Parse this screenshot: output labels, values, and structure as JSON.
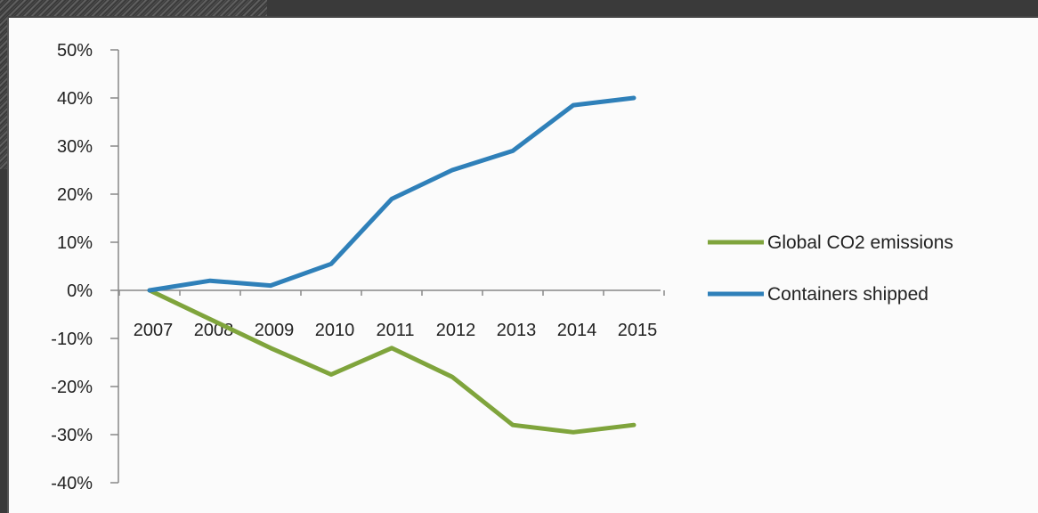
{
  "chart_data": {
    "type": "line",
    "title": "",
    "xlabel": "",
    "ylabel": "",
    "categories": [
      "2007",
      "2008",
      "2009",
      "2010",
      "2011",
      "2012",
      "2013",
      "2014",
      "2015"
    ],
    "ylim": [
      -0.4,
      0.5
    ],
    "yticks": [
      0.5,
      0.4,
      0.3,
      0.2,
      0.1,
      0.0,
      -0.1,
      -0.2,
      -0.3,
      -0.4
    ],
    "ytick_labels": [
      "50%",
      "40%",
      "30%",
      "20%",
      "10%",
      "0%",
      "-10%",
      "-20%",
      "-30%",
      "-40%"
    ],
    "grid": false,
    "legend_position": "right",
    "series": [
      {
        "name": "Global CO2 emissions",
        "color": "#7fa43c",
        "values": [
          0.0,
          -0.06,
          -0.12,
          -0.175,
          -0.12,
          -0.18,
          -0.28,
          -0.295,
          -0.28
        ]
      },
      {
        "name": "Containers shipped",
        "color": "#2f80b9",
        "values": [
          0.0,
          0.02,
          0.01,
          0.055,
          0.19,
          0.25,
          0.29,
          0.385,
          0.4
        ]
      }
    ]
  }
}
